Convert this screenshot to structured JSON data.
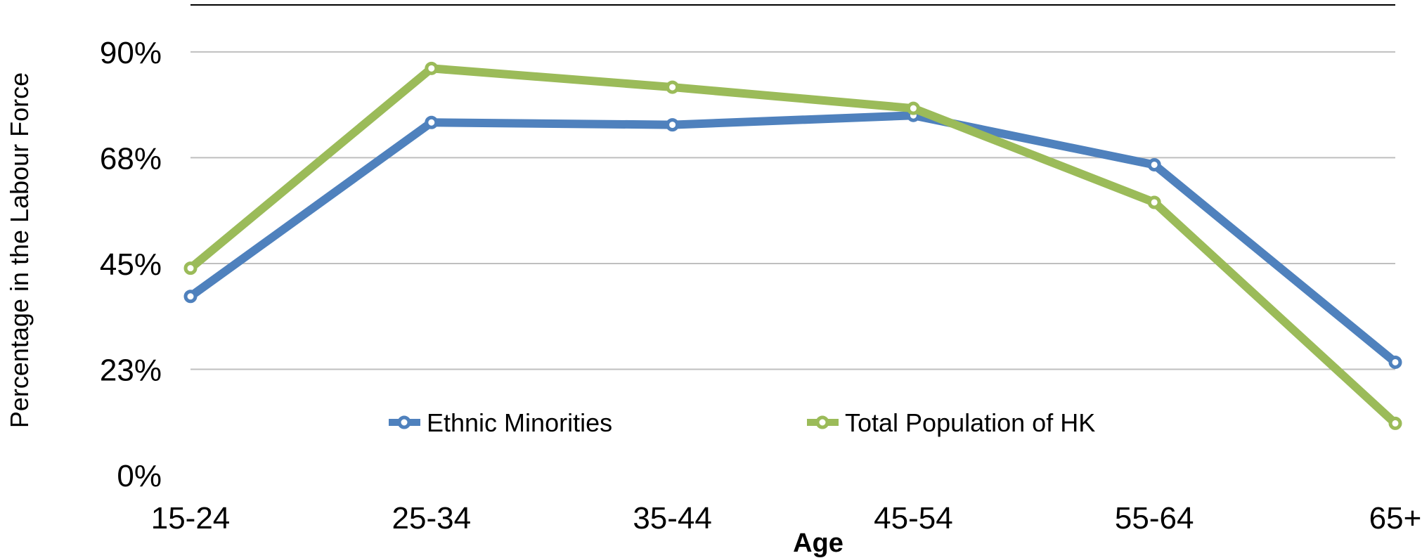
{
  "chart_data": {
    "type": "line",
    "categories": [
      "15-24",
      "25-34",
      "35-44",
      "45-54",
      "55-64",
      "65+"
    ],
    "series": [
      {
        "name": "Ethnic Minorities",
        "values": [
          38,
          75,
          74.5,
          76.5,
          66,
          24
        ],
        "color": "#4F81BD"
      },
      {
        "name": "Total Population of HK",
        "values": [
          44,
          86.5,
          82.5,
          78,
          58,
          11
        ],
        "color": "#9BBB59"
      }
    ],
    "xlabel": "Age",
    "ylabel": "Percentage in the Labour Force",
    "ylim": [
      0,
      100
    ],
    "y_ticks": [
      {
        "value": 0,
        "label": "0%"
      },
      {
        "value": 22.5,
        "label": "23%"
      },
      {
        "value": 45,
        "label": "45%"
      },
      {
        "value": 67.5,
        "label": "68%"
      },
      {
        "value": 90,
        "label": "90%"
      }
    ],
    "grid": true,
    "legend_position": "inside-bottom-center"
  }
}
